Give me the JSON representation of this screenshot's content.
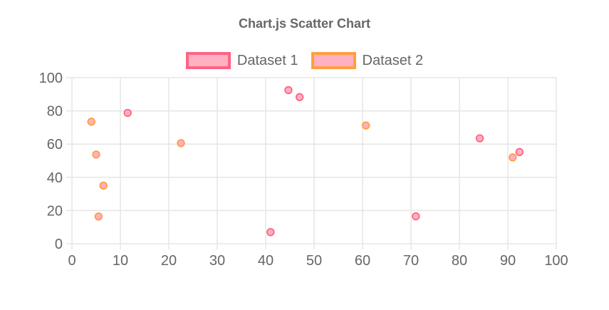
{
  "chart_data": {
    "type": "scatter",
    "title": "Chart.js Scatter Chart",
    "legend_position": "top",
    "grid": true,
    "x_axis": {
      "min": 0,
      "max": 100,
      "tick_labels": [
        "0",
        "10",
        "20",
        "30",
        "40",
        "50",
        "60",
        "70",
        "80",
        "90",
        "100"
      ]
    },
    "y_axis": {
      "min": 0,
      "max": 100,
      "tick_labels": [
        "0",
        "20",
        "40",
        "60",
        "80",
        "100"
      ]
    },
    "series": [
      {
        "name": "Dataset 1",
        "border_color": "#ff6384",
        "fill_color": "#ffb1c1",
        "points": [
          {
            "x": 11.5,
            "y": 78.8
          },
          {
            "x": 41.0,
            "y": 7.0
          },
          {
            "x": 44.7,
            "y": 92.5
          },
          {
            "x": 47.0,
            "y": 88.3
          },
          {
            "x": 71.0,
            "y": 16.5
          },
          {
            "x": 84.2,
            "y": 63.5
          },
          {
            "x": 92.4,
            "y": 55.2
          }
        ]
      },
      {
        "name": "Dataset 2",
        "border_color": "#ff9f40",
        "fill_color": "#ffb1c1",
        "points": [
          {
            "x": 4.0,
            "y": 73.5
          },
          {
            "x": 5.0,
            "y": 53.7
          },
          {
            "x": 5.5,
            "y": 16.4
          },
          {
            "x": 6.5,
            "y": 35.0
          },
          {
            "x": 22.5,
            "y": 60.6
          },
          {
            "x": 60.7,
            "y": 71.2
          },
          {
            "x": 91.0,
            "y": 52.0
          }
        ]
      }
    ],
    "style": {
      "text_color": "#666666",
      "grid_color": "#e5e5e5",
      "point_radius": 4.8,
      "point_border_width": 1.8
    }
  }
}
